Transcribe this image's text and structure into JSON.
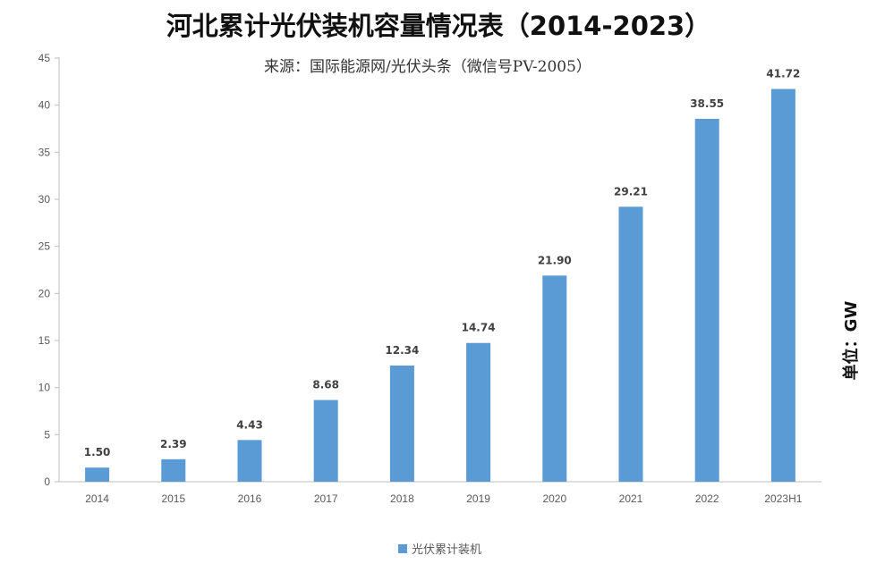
{
  "chart_data": {
    "type": "bar",
    "title": "河北累计光伏装机容量情况表（2014-2023）",
    "subtitle": "来源：国际能源网/光伏头条（微信号PV-2005）",
    "unit_label": "单位：GW",
    "categories": [
      "2014",
      "2015",
      "2016",
      "2017",
      "2018",
      "2019",
      "2020",
      "2021",
      "2022",
      "2023H1"
    ],
    "series": [
      {
        "name": "光伏累计装机",
        "values": [
          1.5,
          2.39,
          4.43,
          8.68,
          12.34,
          14.74,
          21.9,
          29.21,
          38.55,
          41.72
        ],
        "labels": [
          "1.50",
          "2.39",
          "4.43",
          "8.68",
          "12.34",
          "14.74",
          "21.90",
          "29.21",
          "38.55",
          "41.72"
        ],
        "color": "#5b9bd5"
      }
    ],
    "ylim": [
      0,
      45
    ],
    "yticks": [
      "0",
      "5",
      "10",
      "15",
      "20",
      "25",
      "30",
      "35",
      "40",
      "45"
    ],
    "grid": false,
    "legend_position": "bottom"
  }
}
